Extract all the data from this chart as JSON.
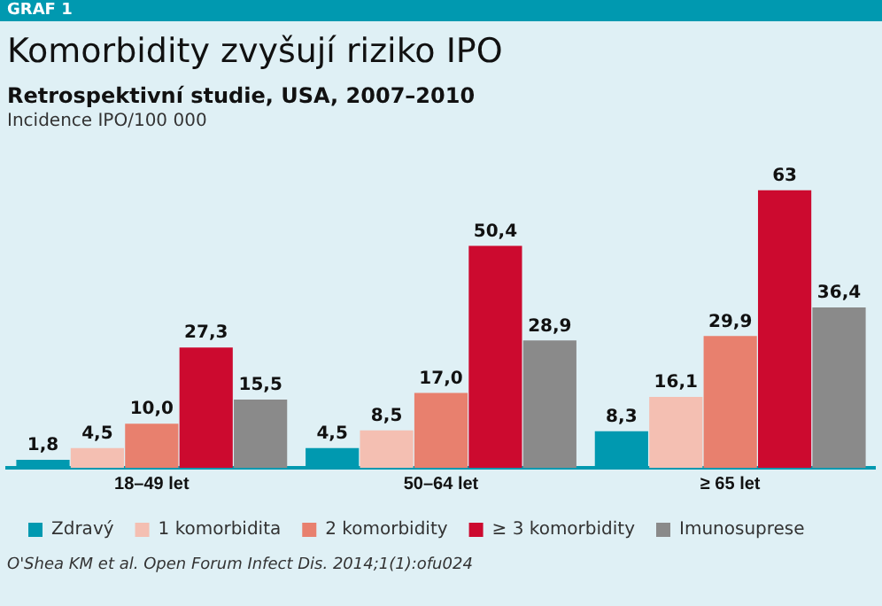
{
  "chart_data": {
    "type": "bar",
    "title": "Komorbidity zvyšují riziko IPO",
    "subtitle": "Retrospektivní studie, USA, 2007–2010",
    "ylabel": "Incidence IPO/100 000",
    "annotations": [
      "GRAF 1",
      "O'Shea KM et al. Open Forum Infect Dis. 2014;1(1):ofu024"
    ],
    "categories": [
      "18–49 let",
      "50–64 let",
      "≥ 65 let"
    ],
    "series": [
      {
        "name": "Zdravý",
        "color": "#0099b0",
        "values": [
          1.8,
          4.5,
          8.3
        ],
        "value_labels": [
          "1,8",
          "4,5",
          "8,3"
        ]
      },
      {
        "name": "1 komorbidita",
        "color": "#f4bfb2",
        "values": [
          4.5,
          8.5,
          16.1
        ],
        "value_labels": [
          "4,5",
          "8,5",
          "16,1"
        ]
      },
      {
        "name": "2 komorbidity",
        "color": "#e8806e",
        "values": [
          10.0,
          17.0,
          29.9
        ],
        "value_labels": [
          "10,0",
          "17,0",
          "29,9"
        ]
      },
      {
        "name": "≥ 3 komorbidity",
        "color": "#cc0a2f",
        "values": [
          27.3,
          50.4,
          63
        ],
        "value_labels": [
          "27,3",
          "50,4",
          "63"
        ]
      },
      {
        "name": "Imunosuprese",
        "color": "#8a8a8a",
        "values": [
          15.5,
          28.9,
          36.4
        ],
        "value_labels": [
          "15,5",
          "28,9",
          "36,4"
        ]
      }
    ],
    "grid": false,
    "legend": "bottom"
  }
}
